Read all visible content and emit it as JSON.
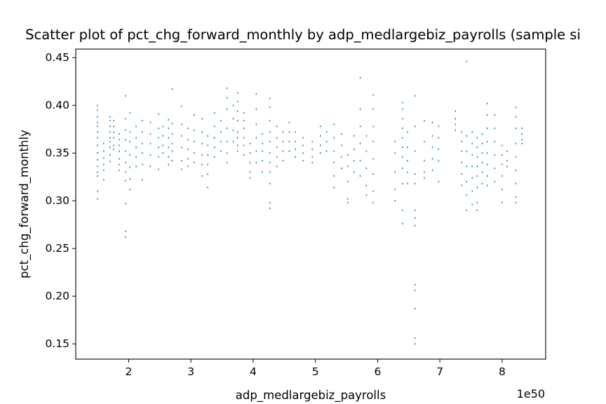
{
  "chart_data": {
    "type": "scatter",
    "title": "Scatter plot of pct_chg_forward_monthly by adp_medlargebiz_payrolls (sample si",
    "xlabel": "adp_medlargebiz_payrolls",
    "ylabel": "pct_chg_forward_monthly",
    "x_offset_label": "1e50",
    "x_scale_note": "x values in units of 1e50",
    "xlim": [
      1.15,
      8.7
    ],
    "ylim": [
      0.134,
      0.459
    ],
    "xticks": [
      2,
      3,
      4,
      5,
      6,
      7,
      8
    ],
    "xtick_labels": [
      "2",
      "3",
      "4",
      "5",
      "6",
      "7",
      "8"
    ],
    "yticks": [
      0.15,
      0.2,
      0.25,
      0.3,
      0.35,
      0.4,
      0.45
    ],
    "ytick_labels": [
      "0.15",
      "0.20",
      "0.25",
      "0.30",
      "0.35",
      "0.40",
      "0.45"
    ],
    "grid": false,
    "marker_color": "#1f77b4",
    "marker": "small point",
    "clusters": [
      {
        "x": 1.5,
        "ys": [
          0.4,
          0.395,
          0.388,
          0.382,
          0.378,
          0.372,
          0.366,
          0.358,
          0.35,
          0.343,
          0.336,
          0.33,
          0.326,
          0.31,
          0.302
        ]
      },
      {
        "x": 1.6,
        "ys": [
          0.36,
          0.352,
          0.345,
          0.338,
          0.332,
          0.322
        ]
      },
      {
        "x": 1.7,
        "ys": [
          0.388,
          0.384,
          0.378,
          0.372,
          0.366,
          0.362,
          0.356,
          0.348,
          0.341
        ]
      },
      {
        "x": 1.76,
        "ys": [
          0.384,
          0.378,
          0.372,
          0.366,
          0.358,
          0.354
        ]
      },
      {
        "x": 1.85,
        "ys": [
          0.37,
          0.364,
          0.358,
          0.352,
          0.344,
          0.338,
          0.332
        ]
      },
      {
        "x": 1.95,
        "ys": [
          0.41,
          0.386,
          0.374,
          0.364,
          0.352,
          0.34,
          0.33,
          0.321,
          0.297,
          0.268,
          0.262
        ]
      },
      {
        "x": 2.02,
        "ys": [
          0.392,
          0.372,
          0.362,
          0.348,
          0.335,
          0.323,
          0.312
        ]
      },
      {
        "x": 2.12,
        "ys": [
          0.378,
          0.366,
          0.356,
          0.346,
          0.336
        ]
      },
      {
        "x": 2.22,
        "ys": [
          0.384,
          0.372,
          0.36,
          0.35,
          0.338,
          0.322
        ]
      },
      {
        "x": 2.35,
        "ys": [
          0.382,
          0.37,
          0.36,
          0.348,
          0.336
        ]
      },
      {
        "x": 2.48,
        "ys": [
          0.391,
          0.376,
          0.366,
          0.356,
          0.346,
          0.333
        ]
      },
      {
        "x": 2.55,
        "ys": [
          0.378,
          0.368,
          0.358,
          0.35
        ]
      },
      {
        "x": 2.64,
        "ys": [
          0.385,
          0.376,
          0.366,
          0.356,
          0.346,
          0.338
        ]
      },
      {
        "x": 2.7,
        "ys": [
          0.417,
          0.381,
          0.37,
          0.36,
          0.352,
          0.342
        ]
      },
      {
        "x": 2.85,
        "ys": [
          0.399,
          0.38,
          0.368,
          0.356,
          0.342,
          0.333
        ]
      },
      {
        "x": 2.95,
        "ys": [
          0.376,
          0.364,
          0.354,
          0.344,
          0.336
        ]
      },
      {
        "x": 3.05,
        "ys": [
          0.39,
          0.374,
          0.362,
          0.35,
          0.34
        ]
      },
      {
        "x": 3.18,
        "ys": [
          0.386,
          0.372,
          0.36,
          0.348,
          0.338,
          0.326
        ]
      },
      {
        "x": 3.27,
        "ys": [
          0.368,
          0.358,
          0.348,
          0.338,
          0.328,
          0.314
        ]
      },
      {
        "x": 3.38,
        "ys": [
          0.392,
          0.378,
          0.366,
          0.356,
          0.346
        ]
      },
      {
        "x": 3.48,
        "ys": [
          0.384,
          0.372,
          0.362,
          0.352
        ]
      },
      {
        "x": 3.58,
        "ys": [
          0.418,
          0.408,
          0.396,
          0.376,
          0.362,
          0.35,
          0.34
        ]
      },
      {
        "x": 3.68,
        "ys": [
          0.4,
          0.386,
          0.374,
          0.362
        ]
      },
      {
        "x": 3.75,
        "ys": [
          0.413,
          0.404,
          0.394,
          0.384,
          0.372,
          0.366,
          0.358,
          0.352
        ]
      },
      {
        "x": 3.85,
        "ys": [
          0.392,
          0.384,
          0.376,
          0.366,
          0.358,
          0.348
        ]
      },
      {
        "x": 3.95,
        "ys": [
          0.36,
          0.35,
          0.34,
          0.33,
          0.324
        ]
      },
      {
        "x": 4.05,
        "ys": [
          0.412,
          0.396,
          0.38,
          0.366,
          0.352,
          0.34
        ]
      },
      {
        "x": 4.15,
        "ys": [
          0.37,
          0.36,
          0.352,
          0.342,
          0.33
        ]
      },
      {
        "x": 4.27,
        "ys": [
          0.407,
          0.398,
          0.384,
          0.372,
          0.362,
          0.35,
          0.34,
          0.33,
          0.318,
          0.298,
          0.292
        ]
      },
      {
        "x": 4.38,
        "ys": [
          0.378,
          0.366,
          0.356,
          0.346,
          0.336
        ]
      },
      {
        "x": 4.48,
        "ys": [
          0.372,
          0.362,
          0.352,
          0.342
        ]
      },
      {
        "x": 4.58,
        "ys": [
          0.382,
          0.372,
          0.362,
          0.352
        ]
      },
      {
        "x": 4.68,
        "ys": [
          0.372,
          0.362,
          0.354,
          0.346
        ]
      },
      {
        "x": 4.8,
        "ys": [
          0.366,
          0.358,
          0.35,
          0.342
        ]
      },
      {
        "x": 4.95,
        "ys": [
          0.362,
          0.354,
          0.346,
          0.34
        ]
      },
      {
        "x": 5.08,
        "ys": [
          0.378,
          0.368,
          0.358,
          0.35
        ]
      },
      {
        "x": 5.18,
        "ys": [
          0.372,
          0.362,
          0.352
        ]
      },
      {
        "x": 5.3,
        "ys": [
          0.38,
          0.366,
          0.352,
          0.34,
          0.326,
          0.314
        ]
      },
      {
        "x": 5.42,
        "ys": [
          0.37,
          0.358,
          0.346,
          0.334
        ]
      },
      {
        "x": 5.52,
        "ys": [
          0.348,
          0.336,
          0.32,
          0.302,
          0.298
        ]
      },
      {
        "x": 5.62,
        "ys": [
          0.368,
          0.354,
          0.342,
          0.33
        ]
      },
      {
        "x": 5.72,
        "ys": [
          0.429,
          0.396,
          0.378,
          0.36,
          0.342,
          0.326
        ]
      },
      {
        "x": 5.82,
        "ys": [
          0.368,
          0.352,
          0.334,
          0.316,
          0.306
        ]
      },
      {
        "x": 5.93,
        "ys": [
          0.411,
          0.396,
          0.378,
          0.362,
          0.344,
          0.328,
          0.31,
          0.298
        ]
      },
      {
        "x": 6.28,
        "ys": [
          0.362,
          0.35,
          0.33,
          0.312,
          0.3
        ]
      },
      {
        "x": 6.4,
        "ys": [
          0.403,
          0.396,
          0.386,
          0.376,
          0.366,
          0.356,
          0.346,
          0.334,
          0.318,
          0.29,
          0.276
        ]
      },
      {
        "x": 6.48,
        "ys": [
          0.372,
          0.356,
          0.342,
          0.33,
          0.318
        ]
      },
      {
        "x": 6.6,
        "ys": [
          0.41,
          0.378,
          0.352,
          0.328,
          0.318,
          0.29,
          0.282,
          0.274,
          0.212,
          0.206,
          0.187,
          0.156,
          0.15
        ]
      },
      {
        "x": 6.75,
        "ys": [
          0.384,
          0.362,
          0.342,
          0.33,
          0.324
        ]
      },
      {
        "x": 6.88,
        "ys": [
          0.382,
          0.368,
          0.356,
          0.344,
          0.332
        ]
      },
      {
        "x": 6.98,
        "ys": [
          0.378,
          0.366,
          0.354,
          0.342,
          0.32
        ]
      },
      {
        "x": 7.25,
        "ys": [
          0.394,
          0.386,
          0.38,
          0.374
        ]
      },
      {
        "x": 7.35,
        "ys": [
          0.372,
          0.362,
          0.352,
          0.34,
          0.328,
          0.316
        ]
      },
      {
        "x": 7.43,
        "ys": [
          0.446,
          0.368,
          0.352,
          0.336,
          0.32,
          0.306,
          0.29
        ]
      },
      {
        "x": 7.52,
        "ys": [
          0.372,
          0.36,
          0.348,
          0.336,
          0.324,
          0.31,
          0.296
        ]
      },
      {
        "x": 7.6,
        "ys": [
          0.366,
          0.356,
          0.346,
          0.336,
          0.326,
          0.314,
          0.298,
          0.29
        ]
      },
      {
        "x": 7.68,
        "ys": [
          0.37,
          0.36,
          0.35,
          0.34,
          0.33,
          0.318
        ]
      },
      {
        "x": 7.76,
        "ys": [
          0.402,
          0.39,
          0.376,
          0.362,
          0.35,
          0.338,
          0.326,
          0.316
        ]
      },
      {
        "x": 7.88,
        "ys": [
          0.39,
          0.376,
          0.362,
          0.348,
          0.334,
          0.32
        ]
      },
      {
        "x": 8.0,
        "ys": [
          0.358,
          0.348,
          0.338,
          0.326,
          0.312,
          0.298
        ]
      },
      {
        "x": 8.08,
        "ys": [
          0.352,
          0.342,
          0.336
        ]
      },
      {
        "x": 8.22,
        "ys": [
          0.398,
          0.388,
          0.376,
          0.36,
          0.346,
          0.332,
          0.318,
          0.304,
          0.298
        ]
      },
      {
        "x": 8.32,
        "ys": [
          0.376,
          0.37,
          0.364,
          0.36
        ]
      }
    ]
  }
}
